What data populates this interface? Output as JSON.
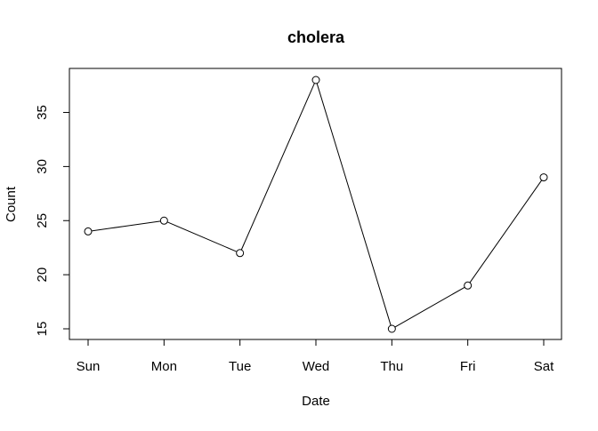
{
  "chart_data": {
    "type": "line",
    "title": "cholera",
    "xlabel": "Date",
    "ylabel": "Count",
    "categories": [
      "Sun",
      "Mon",
      "Tue",
      "Wed",
      "Thu",
      "Fri",
      "Sat"
    ],
    "values": [
      24,
      25,
      22,
      38,
      15,
      19,
      29
    ],
    "y_ticks": [
      "15",
      "20",
      "25",
      "30",
      "35"
    ],
    "ylim": [
      14.2,
      38.8
    ],
    "grid": false,
    "marker": "open-circle",
    "line_color": "#000000"
  }
}
